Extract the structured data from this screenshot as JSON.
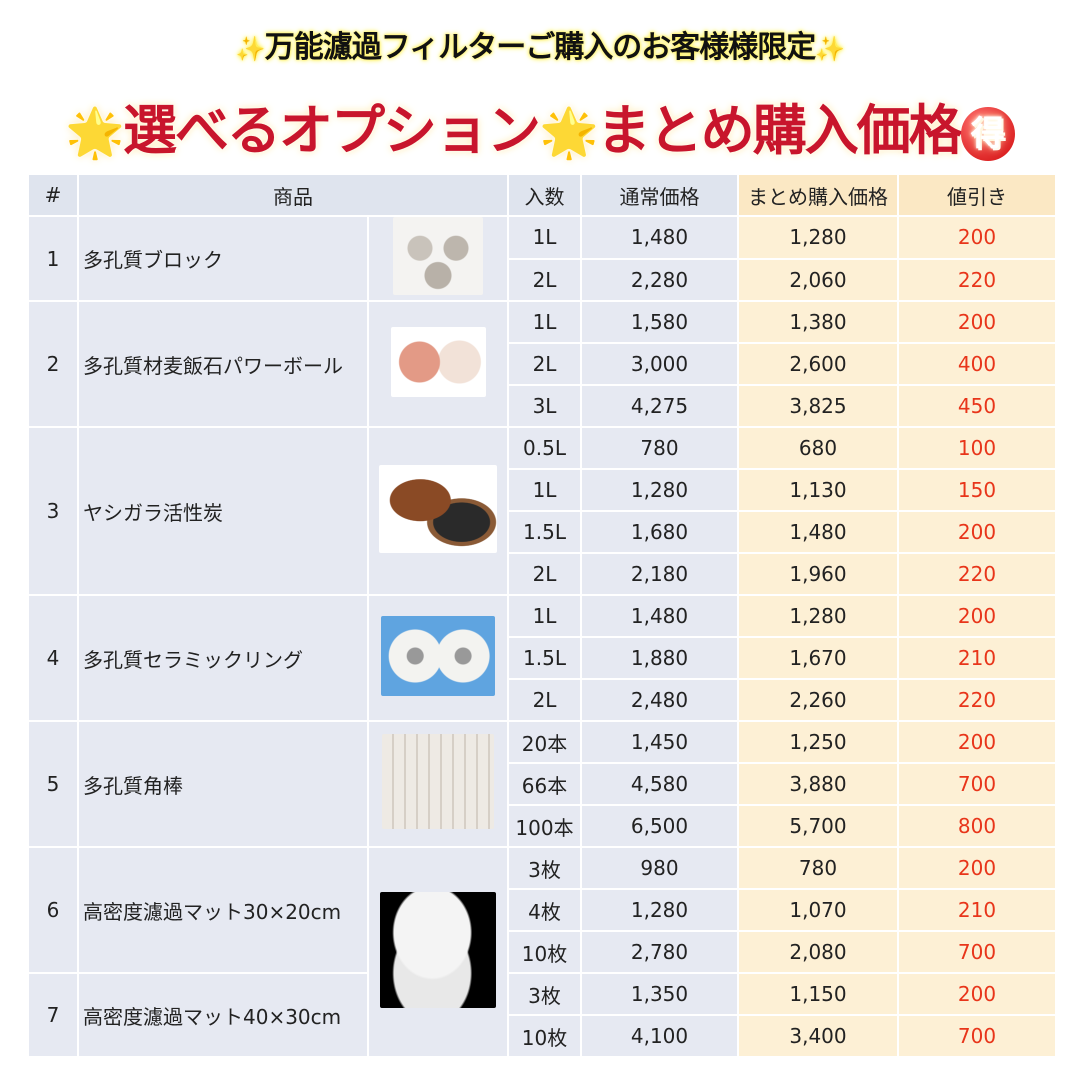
{
  "header": {
    "subtitle": "万能濾過フィルターご購入のお客様様限定",
    "title_part1": "選べるオプション",
    "title_part2": "まとめ購入価格",
    "badge": "得",
    "spark_icon": "✨",
    "star_icon": "🌟"
  },
  "colors": {
    "title": "#c8152c",
    "discount": "#e8351a",
    "header_bg": "#dfe4ee",
    "highlight_bg": "#fdf0d5"
  },
  "table": {
    "columns": [
      "#",
      "商品",
      "入数",
      "通常価格",
      "まとめ購入価格",
      "値引き"
    ],
    "products": [
      {
        "no": "1",
        "name": "多孔質ブロック",
        "image": "porous-block",
        "rows": [
          [
            "1L",
            "1,480",
            "1,280",
            "200"
          ],
          [
            "2L",
            "2,280",
            "2,060",
            "220"
          ]
        ]
      },
      {
        "no": "2",
        "name": "多孔質材麦飯石パワーボール",
        "image": "power-ball",
        "rows": [
          [
            "1L",
            "1,580",
            "1,380",
            "200"
          ],
          [
            "2L",
            "3,000",
            "2,600",
            "400"
          ],
          [
            "3L",
            "4,275",
            "3,825",
            "450"
          ]
        ]
      },
      {
        "no": "3",
        "name": "ヤシガラ活性炭",
        "image": "coconut-carbon",
        "rows": [
          [
            "0.5L",
            "780",
            "680",
            "100"
          ],
          [
            "1L",
            "1,280",
            "1,130",
            "150"
          ],
          [
            "1.5L",
            "1,680",
            "1,480",
            "200"
          ],
          [
            "2L",
            "2,180",
            "1,960",
            "220"
          ]
        ]
      },
      {
        "no": "4",
        "name": "多孔質セラミックリング",
        "image": "ceramic-ring",
        "rows": [
          [
            "1L",
            "1,480",
            "1,280",
            "200"
          ],
          [
            "1.5L",
            "1,880",
            "1,670",
            "210"
          ],
          [
            "2L",
            "2,480",
            "2,260",
            "220"
          ]
        ]
      },
      {
        "no": "5",
        "name": "多孔質角棒",
        "image": "square-rod",
        "rows": [
          [
            "20本",
            "1,450",
            "1,250",
            "200"
          ],
          [
            "66本",
            "4,580",
            "3,880",
            "700"
          ],
          [
            "100本",
            "6,500",
            "5,700",
            "800"
          ]
        ]
      },
      {
        "no": "6",
        "name": "高密度濾過マット30×20cm",
        "image": "filter-mat",
        "rows": [
          [
            "3枚",
            "980",
            "780",
            "200"
          ],
          [
            "4枚",
            "1,280",
            "1,070",
            "210"
          ],
          [
            "10枚",
            "2,780",
            "2,080",
            "700"
          ]
        ]
      },
      {
        "no": "7",
        "name": "高密度濾過マット40×30cm",
        "image": "filter-mat",
        "rows": [
          [
            "3枚",
            "1,350",
            "1,150",
            "200"
          ],
          [
            "10枚",
            "4,100",
            "3,400",
            "700"
          ]
        ]
      }
    ]
  }
}
